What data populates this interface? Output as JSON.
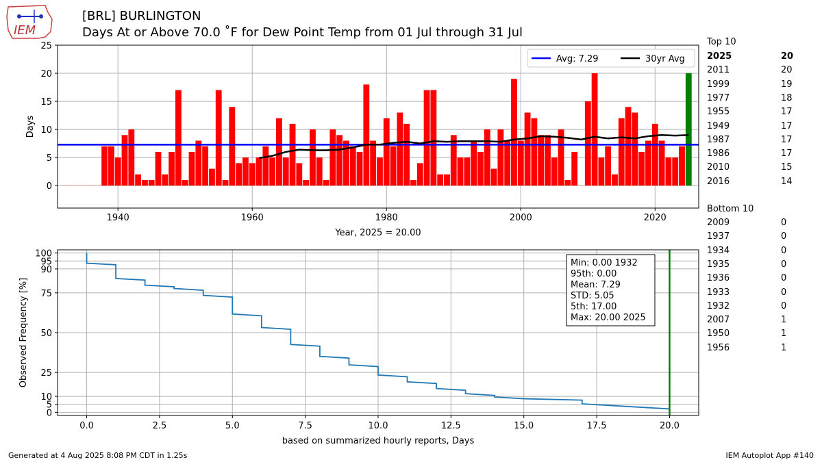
{
  "header": {
    "station": "[BRL] BURLINGTON",
    "subtitle": "Days At or Above 70.0 ˚F for Dew Point Temp from 01 Jul through 31 Jul",
    "logo_text": "IEM"
  },
  "footer": {
    "generated": "Generated at 4 Aug 2025 8:08 PM CDT in 1.25s",
    "app": "IEM Autoplot App #140"
  },
  "top10": {
    "label": "Top 10",
    "rows": [
      {
        "year": "2025",
        "value": "20"
      },
      {
        "year": "2011",
        "value": "20"
      },
      {
        "year": "1999",
        "value": "19"
      },
      {
        "year": "1977",
        "value": "18"
      },
      {
        "year": "1955",
        "value": "17"
      },
      {
        "year": "1949",
        "value": "17"
      },
      {
        "year": "1987",
        "value": "17"
      },
      {
        "year": "1986",
        "value": "17"
      },
      {
        "year": "2010",
        "value": "15"
      },
      {
        "year": "2016",
        "value": "14"
      }
    ]
  },
  "bottom10": {
    "label": "Bottom 10",
    "rows": [
      {
        "year": "2009",
        "value": "0"
      },
      {
        "year": "1937",
        "value": "0"
      },
      {
        "year": "1934",
        "value": "0"
      },
      {
        "year": "1935",
        "value": "0"
      },
      {
        "year": "1936",
        "value": "0"
      },
      {
        "year": "1933",
        "value": "0"
      },
      {
        "year": "1932",
        "value": "0"
      },
      {
        "year": "2007",
        "value": "1"
      },
      {
        "year": "1950",
        "value": "1"
      },
      {
        "year": "1956",
        "value": "1"
      }
    ]
  },
  "colors": {
    "bar": "#ff0000",
    "current_bar": "#008000",
    "avg_line": "#0000ff",
    "rolling_line": "#000000",
    "cdf_line": "#1f77b4",
    "marker_line": "#008000",
    "grid": "#b0b0b0"
  },
  "chart_data": [
    {
      "type": "bar",
      "xlabel": "Year, 2025 = 20.00",
      "ylabel": "Days",
      "xlim": [
        1931,
        2026.5
      ],
      "ylim": [
        -4,
        25
      ],
      "xticks": [
        1940,
        1960,
        1980,
        2000,
        2020
      ],
      "yticks": [
        0,
        5,
        10,
        15,
        20,
        25
      ],
      "grid": true,
      "legend_position": "top-right",
      "current_year": 2025,
      "years": [
        1932,
        1933,
        1934,
        1935,
        1936,
        1937,
        1938,
        1939,
        1940,
        1941,
        1942,
        1943,
        1944,
        1945,
        1946,
        1947,
        1948,
        1949,
        1950,
        1951,
        1952,
        1953,
        1954,
        1955,
        1956,
        1957,
        1958,
        1959,
        1960,
        1961,
        1962,
        1963,
        1964,
        1965,
        1966,
        1967,
        1968,
        1969,
        1970,
        1971,
        1972,
        1973,
        1974,
        1975,
        1976,
        1977,
        1978,
        1979,
        1980,
        1981,
        1982,
        1983,
        1984,
        1985,
        1986,
        1987,
        1988,
        1989,
        1990,
        1991,
        1992,
        1993,
        1994,
        1995,
        1996,
        1997,
        1998,
        1999,
        2000,
        2001,
        2002,
        2003,
        2004,
        2005,
        2006,
        2007,
        2008,
        2009,
        2010,
        2011,
        2012,
        2013,
        2014,
        2015,
        2016,
        2017,
        2018,
        2019,
        2020,
        2021,
        2022,
        2023,
        2024,
        2025
      ],
      "values": [
        0,
        0,
        0,
        0,
        0,
        0,
        7,
        7,
        5,
        9,
        10,
        2,
        1,
        1,
        6,
        2,
        6,
        17,
        1,
        6,
        8,
        7,
        3,
        17,
        1,
        14,
        4,
        5,
        4,
        5,
        7,
        5,
        12,
        5,
        11,
        4,
        1,
        10,
        5,
        1,
        10,
        9,
        8,
        7,
        6,
        18,
        8,
        5,
        12,
        7,
        13,
        11,
        1,
        4,
        17,
        17,
        2,
        2,
        9,
        5,
        5,
        8,
        6,
        10,
        3,
        10,
        8,
        19,
        8,
        13,
        12,
        9,
        9,
        5,
        10,
        1,
        6,
        0,
        15,
        20,
        5,
        7,
        2,
        12,
        14,
        13,
        6,
        8,
        11,
        8,
        5,
        5,
        7,
        20
      ],
      "average": {
        "name": "Avg: 7.29",
        "value": 7.29
      },
      "rolling": {
        "name": "30yr Avg",
        "x": [
          1961,
          1963,
          1965,
          1967,
          1969,
          1971,
          1973,
          1975,
          1977,
          1979,
          1981,
          1983,
          1985,
          1987,
          1989,
          1991,
          1993,
          1995,
          1997,
          1999,
          2001,
          2003,
          2005,
          2007,
          2009,
          2011,
          2013,
          2015,
          2017,
          2019,
          2021,
          2023,
          2025
        ],
        "y": [
          4.9,
          5.3,
          6.0,
          6.4,
          6.3,
          6.3,
          6.4,
          6.8,
          7.3,
          7.3,
          7.6,
          7.8,
          7.5,
          7.9,
          7.8,
          7.9,
          7.9,
          7.9,
          7.8,
          8.2,
          8.4,
          8.8,
          8.7,
          8.5,
          8.2,
          8.7,
          8.4,
          8.6,
          8.4,
          8.8,
          9.0,
          8.9,
          9.0
        ]
      }
    },
    {
      "type": "line",
      "xlabel": "based on summarized hourly reports, Days",
      "ylabel": "Observed Frequency [%]",
      "xlim": [
        -1,
        21
      ],
      "ylim": [
        -2,
        102
      ],
      "xticks": [
        0.0,
        2.5,
        5.0,
        7.5,
        10.0,
        12.5,
        15.0,
        17.5,
        20.0
      ],
      "xtick_labels": [
        "0.0",
        "2.5",
        "5.0",
        "7.5",
        "10.0",
        "12.5",
        "15.0",
        "17.5",
        "20.0"
      ],
      "yticks": [
        100,
        95,
        90,
        75,
        50,
        25,
        10,
        5,
        0
      ],
      "grid": true,
      "marker_x": 20.0,
      "stats": [
        "Min: 0.00 1932",
        "95th: 0.00",
        "Mean: 7.29",
        "STD: 5.05",
        "5th: 17.00",
        "Max: 20.00 2025"
      ],
      "stats_position": "top-right",
      "series": [
        {
          "x": [
            0,
            0,
            1,
            1,
            2,
            2,
            3,
            3,
            4,
            4,
            5,
            5,
            6,
            6,
            7,
            7,
            8,
            8,
            9,
            9,
            10,
            10,
            11,
            11,
            12,
            12,
            13,
            13,
            14,
            14,
            15,
            17,
            17,
            20
          ],
          "y": [
            100,
            93.6,
            92.6,
            84.0,
            83.0,
            79.8,
            78.8,
            77.7,
            76.6,
            73.4,
            72.3,
            61.7,
            60.6,
            53.2,
            52.1,
            42.6,
            41.5,
            35.1,
            34.0,
            29.8,
            28.7,
            23.4,
            22.3,
            19.1,
            18.1,
            14.9,
            13.8,
            11.7,
            10.6,
            9.6,
            8.5,
            7.6,
            5.3,
            2.1
          ]
        }
      ]
    }
  ]
}
